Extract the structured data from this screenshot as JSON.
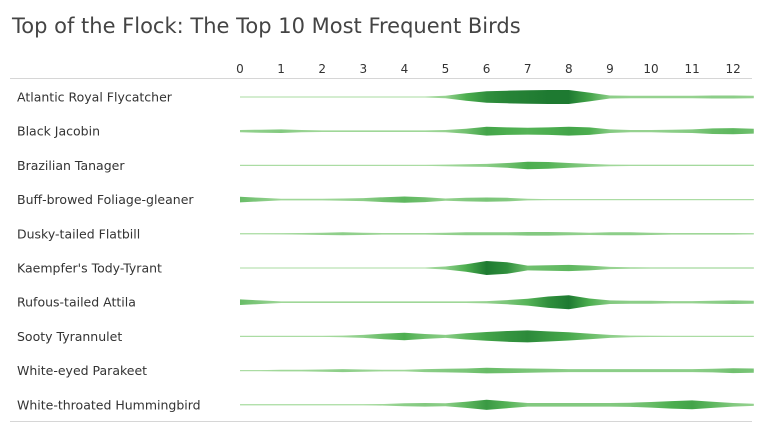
{
  "title": "Top of the Flock: The Top 10 Most Frequent Birds",
  "chart_data": {
    "type": "area",
    "subtype": "horizontal violin / ridge strips",
    "title": "Top of the Flock: The Top 10 Most Frequent Birds",
    "xlabel": "",
    "ylabel": "",
    "x_ticks": [
      "0",
      "1",
      "2",
      "3",
      "4",
      "5",
      "6",
      "7",
      "8",
      "9",
      "10",
      "11",
      "12"
    ],
    "xlim": [
      0,
      12.5
    ],
    "grid": false,
    "legend": "none",
    "colors": {
      "light": "#a8dba0",
      "mid": "#4cae4f",
      "dark": "#1e7a31",
      "divider": "#d6d6d6"
    },
    "x": [
      0,
      0.5,
      1,
      1.5,
      2,
      2.5,
      3,
      3.5,
      4,
      4.5,
      5,
      5.5,
      6,
      6.5,
      7,
      7.5,
      8,
      8.5,
      9,
      9.5,
      10,
      10.5,
      11,
      11.5,
      12,
      12.5
    ],
    "series": [
      {
        "name": "Atlantic Royal Flycatcher",
        "values": [
          0,
          0,
          0,
          0,
          0,
          0,
          0,
          0,
          0,
          0,
          0.1,
          0.5,
          0.8,
          0.9,
          0.95,
          1.0,
          1.0,
          0.6,
          0.15,
          0.1,
          0.1,
          0.1,
          0.1,
          0.15,
          0.15,
          0.1
        ]
      },
      {
        "name": "Black Jacobin",
        "values": [
          0.1,
          0.15,
          0.2,
          0.1,
          0.05,
          0.05,
          0.05,
          0.05,
          0.05,
          0.05,
          0.1,
          0.3,
          0.6,
          0.5,
          0.45,
          0.5,
          0.6,
          0.5,
          0.2,
          0.1,
          0.1,
          0.15,
          0.2,
          0.35,
          0.4,
          0.3
        ]
      },
      {
        "name": "Brazilian Tanager",
        "values": [
          0,
          0,
          0,
          0,
          0,
          0,
          0,
          0,
          0,
          0,
          0.05,
          0.1,
          0.15,
          0.3,
          0.5,
          0.45,
          0.3,
          0.15,
          0.05,
          0.02,
          0.02,
          0.02,
          0.02,
          0.02,
          0.02,
          0.02
        ]
      },
      {
        "name": "Buff-browed Foliage-gleaner",
        "values": [
          0.35,
          0.2,
          0.05,
          0.05,
          0.05,
          0.1,
          0.15,
          0.3,
          0.4,
          0.3,
          0.1,
          0.2,
          0.25,
          0.2,
          0.05,
          0,
          0,
          0,
          0,
          0,
          0,
          0,
          0,
          0,
          0,
          0
        ]
      },
      {
        "name": "Dusky-tailed Flatbill",
        "values": [
          0,
          0,
          0.02,
          0.05,
          0.1,
          0.15,
          0.1,
          0.05,
          0.05,
          0.05,
          0.1,
          0.15,
          0.15,
          0.15,
          0.2,
          0.2,
          0.15,
          0.1,
          0.15,
          0.15,
          0.1,
          0.05,
          0.05,
          0.05,
          0.05,
          0.02
        ]
      },
      {
        "name": "Kaempfer's Tody-Tyrant",
        "values": [
          0,
          0,
          0,
          0,
          0,
          0,
          0,
          0,
          0,
          0,
          0.15,
          0.5,
          1.0,
          0.8,
          0.3,
          0.35,
          0.4,
          0.3,
          0.1,
          0.05,
          0.02,
          0.02,
          0.02,
          0.02,
          0.02,
          0.02
        ]
      },
      {
        "name": "Rufous-tailed Attila",
        "values": [
          0.35,
          0.2,
          0.05,
          0.05,
          0.05,
          0.05,
          0.05,
          0.05,
          0.05,
          0.05,
          0.05,
          0.05,
          0.1,
          0.25,
          0.45,
          0.8,
          1.0,
          0.5,
          0.2,
          0.15,
          0.15,
          0.1,
          0.1,
          0.15,
          0.2,
          0.15
        ]
      },
      {
        "name": "Sooty Tyrannulet",
        "values": [
          0,
          0,
          0,
          0,
          0,
          0.05,
          0.15,
          0.35,
          0.5,
          0.3,
          0.15,
          0.4,
          0.6,
          0.75,
          0.85,
          0.7,
          0.55,
          0.35,
          0.15,
          0.05,
          0.02,
          0,
          0,
          0,
          0,
          0
        ]
      },
      {
        "name": "White-eyed Parakeet",
        "values": [
          0,
          0,
          0.05,
          0.05,
          0.1,
          0.15,
          0.1,
          0.05,
          0.05,
          0.15,
          0.2,
          0.25,
          0.35,
          0.3,
          0.25,
          0.2,
          0.15,
          0.15,
          0.15,
          0.15,
          0.15,
          0.15,
          0.15,
          0.2,
          0.3,
          0.25
        ]
      },
      {
        "name": "White-throated Hummingbird",
        "values": [
          0,
          0,
          0,
          0,
          0,
          0,
          0,
          0.05,
          0.15,
          0.2,
          0.15,
          0.4,
          0.7,
          0.45,
          0.2,
          0.2,
          0.2,
          0.2,
          0.2,
          0.25,
          0.35,
          0.5,
          0.6,
          0.4,
          0.2,
          0.1
        ]
      }
    ]
  }
}
